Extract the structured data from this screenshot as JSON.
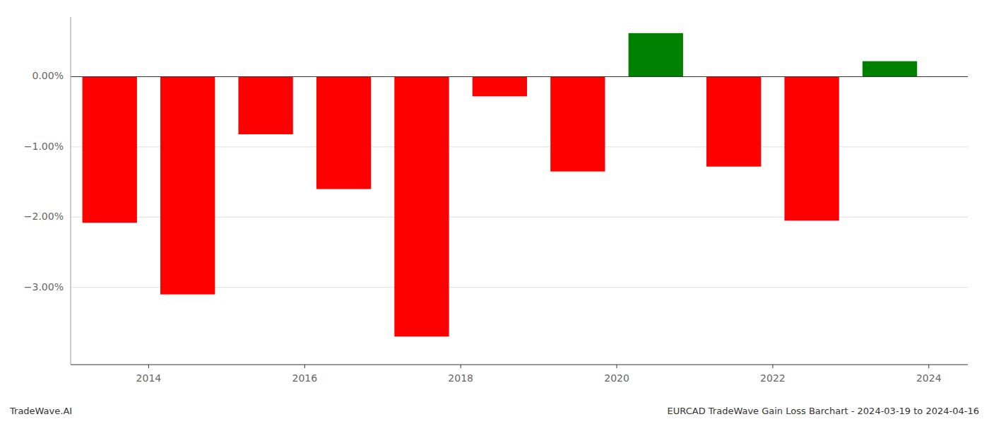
{
  "chart_data": {
    "type": "bar",
    "x": [
      2013.5,
      2014.5,
      2015.5,
      2016.5,
      2017.5,
      2018.5,
      2019.5,
      2020.5,
      2021.5,
      2022.5,
      2023.5
    ],
    "values": [
      -2.08,
      -3.1,
      -0.82,
      -1.6,
      -3.7,
      -0.28,
      -1.35,
      0.62,
      -1.28,
      -2.05,
      0.22
    ],
    "colors": [
      "#ff0000",
      "#ff0000",
      "#ff0000",
      "#ff0000",
      "#ff0000",
      "#ff0000",
      "#ff0000",
      "#008000",
      "#ff0000",
      "#ff0000",
      "#008000"
    ],
    "xlim": [
      2013.0,
      2024.5
    ],
    "xticks": [
      2014,
      2016,
      2018,
      2020,
      2022,
      2024
    ],
    "ylim": [
      -4.1,
      0.85
    ],
    "yticks": [
      {
        "value": 0.0,
        "label": "0.00%"
      },
      {
        "value": -1.0,
        "label": "−1.00%"
      },
      {
        "value": -2.0,
        "label": "−2.00%"
      },
      {
        "value": -3.0,
        "label": "−3.00%"
      }
    ],
    "grid": true,
    "annotations": [
      "TradeWave.AI",
      "EURCAD TradeWave Gain Loss Barchart - 2024-03-19 to 2024-04-16"
    ]
  }
}
